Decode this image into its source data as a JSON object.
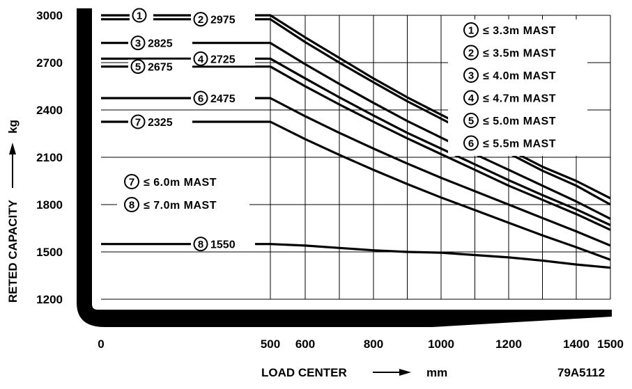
{
  "chart_data": {
    "type": "line",
    "xlabel": "LOAD CENTER",
    "xunit": "mm",
    "ylabel": "RETED CAPACITY",
    "yunit": "kg",
    "code": "79A5112",
    "x_ticks": [
      "0",
      "500",
      "600",
      "800",
      "1000",
      "1200",
      "1400",
      "1500"
    ],
    "y_ticks": [
      "3000",
      "2700",
      "2400",
      "2100",
      "1800",
      "1500",
      "1200"
    ],
    "xlim": [
      0,
      1500
    ],
    "ylim": [
      1200,
      3000
    ],
    "legend_position": "top-right",
    "series": [
      {
        "name": "1",
        "label": "",
        "points": [
          [
            0,
            3000
          ],
          [
            500,
            3000
          ],
          [
            600,
            2860
          ],
          [
            700,
            2730
          ],
          [
            800,
            2600
          ],
          [
            900,
            2480
          ],
          [
            1000,
            2370
          ],
          [
            1100,
            2260
          ],
          [
            1200,
            2150
          ],
          [
            1300,
            2040
          ],
          [
            1400,
            1950
          ],
          [
            1500,
            1840
          ]
        ]
      },
      {
        "name": "2",
        "label": "2975",
        "points": [
          [
            0,
            2975
          ],
          [
            500,
            2975
          ],
          [
            600,
            2830
          ],
          [
            700,
            2700
          ],
          [
            800,
            2575
          ],
          [
            900,
            2455
          ],
          [
            1000,
            2345
          ],
          [
            1100,
            2235
          ],
          [
            1200,
            2125
          ],
          [
            1300,
            2015
          ],
          [
            1400,
            1920
          ],
          [
            1500,
            1800
          ]
        ]
      },
      {
        "name": "3",
        "label": "2825",
        "points": [
          [
            0,
            2825
          ],
          [
            500,
            2825
          ],
          [
            600,
            2690
          ],
          [
            700,
            2565
          ],
          [
            800,
            2445
          ],
          [
            900,
            2330
          ],
          [
            1000,
            2225
          ],
          [
            1100,
            2120
          ],
          [
            1200,
            2020
          ],
          [
            1300,
            1920
          ],
          [
            1400,
            1820
          ],
          [
            1500,
            1710
          ]
        ]
      },
      {
        "name": "4",
        "label": "2725",
        "points": [
          [
            0,
            2725
          ],
          [
            500,
            2725
          ],
          [
            600,
            2600
          ],
          [
            700,
            2480
          ],
          [
            800,
            2365
          ],
          [
            900,
            2255
          ],
          [
            1000,
            2155
          ],
          [
            1100,
            2055
          ],
          [
            1200,
            1955
          ],
          [
            1300,
            1860
          ],
          [
            1400,
            1770
          ],
          [
            1500,
            1670
          ]
        ]
      },
      {
        "name": "5",
        "label": "2675",
        "points": [
          [
            0,
            2675
          ],
          [
            500,
            2675
          ],
          [
            600,
            2550
          ],
          [
            700,
            2435
          ],
          [
            800,
            2325
          ],
          [
            900,
            2220
          ],
          [
            1000,
            2120
          ],
          [
            1100,
            2020
          ],
          [
            1200,
            1920
          ],
          [
            1300,
            1830
          ],
          [
            1400,
            1740
          ],
          [
            1500,
            1640
          ]
        ]
      },
      {
        "name": "6",
        "label": "2475",
        "points": [
          [
            0,
            2475
          ],
          [
            500,
            2475
          ],
          [
            600,
            2360
          ],
          [
            700,
            2255
          ],
          [
            800,
            2155
          ],
          [
            900,
            2060
          ],
          [
            1000,
            1970
          ],
          [
            1100,
            1885
          ],
          [
            1200,
            1800
          ],
          [
            1300,
            1715
          ],
          [
            1400,
            1630
          ],
          [
            1500,
            1540
          ]
        ]
      },
      {
        "name": "7",
        "label": "2325",
        "points": [
          [
            0,
            2325
          ],
          [
            500,
            2325
          ],
          [
            600,
            2215
          ],
          [
            700,
            2115
          ],
          [
            800,
            2020
          ],
          [
            900,
            1930
          ],
          [
            1000,
            1845
          ],
          [
            1100,
            1765
          ],
          [
            1200,
            1685
          ],
          [
            1300,
            1605
          ],
          [
            1400,
            1530
          ],
          [
            1500,
            1450
          ]
        ]
      },
      {
        "name": "8",
        "label": "1550",
        "points": [
          [
            0,
            1550
          ],
          [
            500,
            1550
          ],
          [
            600,
            1540
          ],
          [
            700,
            1525
          ],
          [
            800,
            1510
          ],
          [
            900,
            1500
          ],
          [
            1000,
            1495
          ],
          [
            1100,
            1480
          ],
          [
            1200,
            1465
          ],
          [
            1300,
            1445
          ],
          [
            1400,
            1420
          ],
          [
            1500,
            1400
          ]
        ]
      }
    ],
    "legend": [
      {
        "num": "1",
        "text": "≤ 3.3m MAST"
      },
      {
        "num": "2",
        "text": "≤ 3.5m MAST"
      },
      {
        "num": "3",
        "text": "≤ 4.0m MAST"
      },
      {
        "num": "4",
        "text": "≤ 4.7m MAST"
      },
      {
        "num": "5",
        "text": "≤ 5.0m MAST"
      },
      {
        "num": "6",
        "text": "≤ 5.5m MAST"
      },
      {
        "num": "7",
        "text": "≤ 6.0m MAST"
      },
      {
        "num": "8",
        "text": "≤ 7.0m MAST"
      }
    ]
  }
}
